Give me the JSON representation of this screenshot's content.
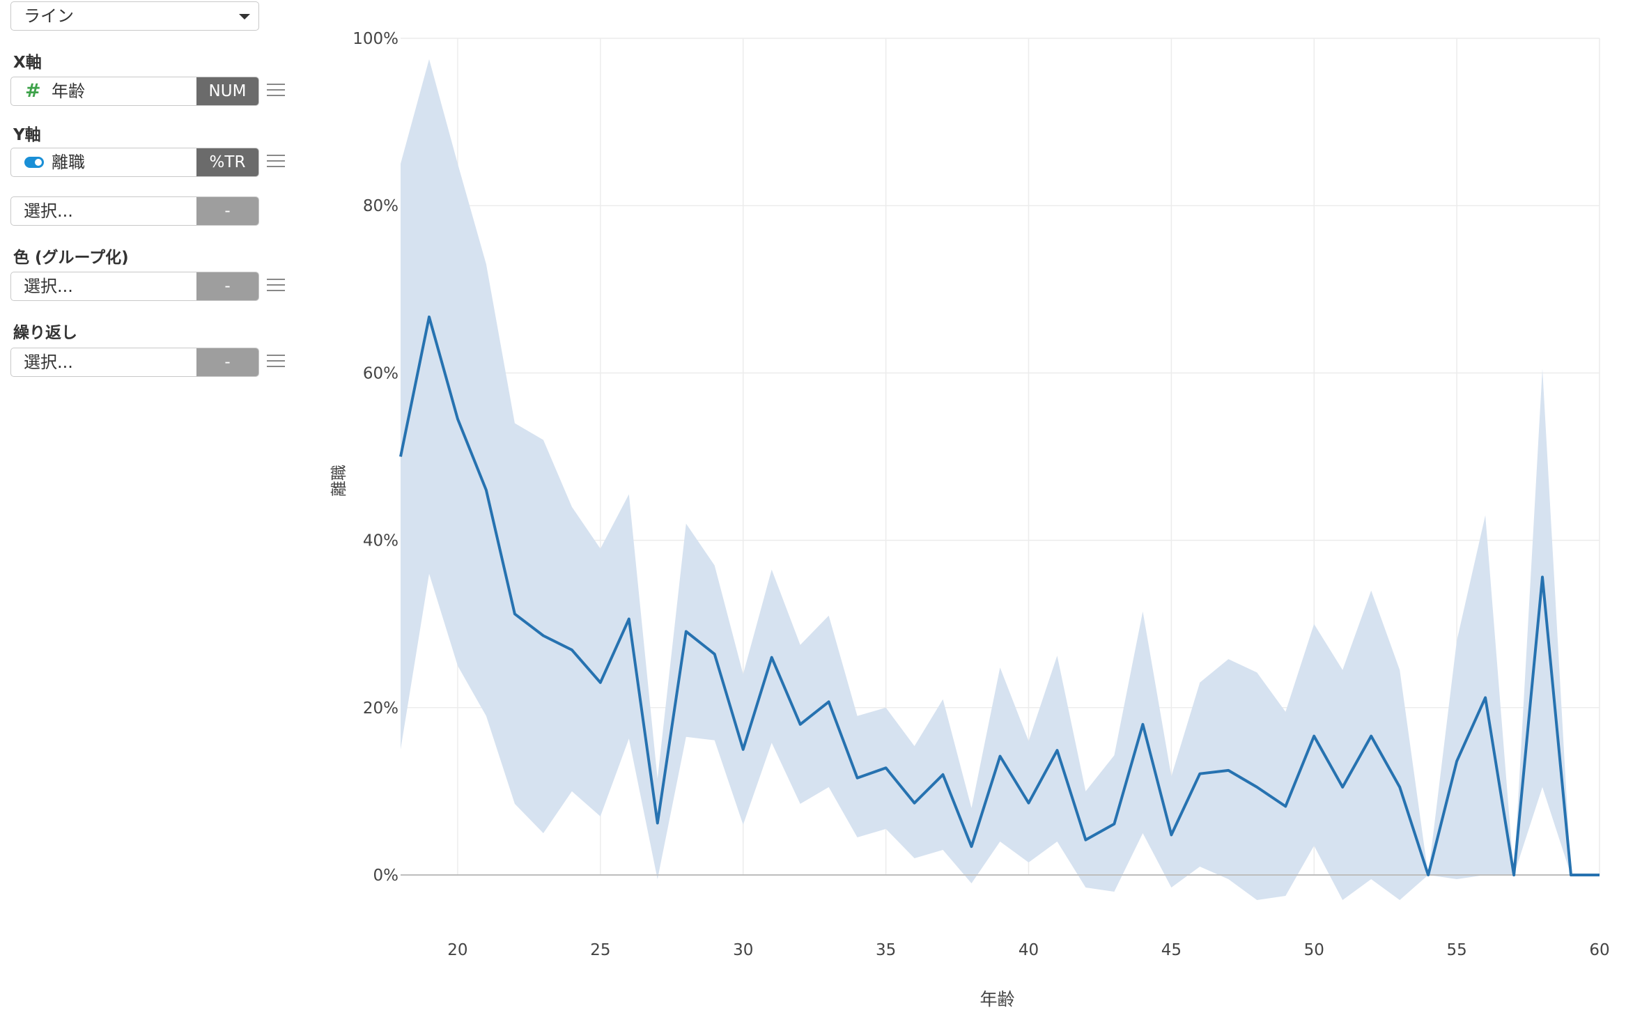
{
  "sidebar": {
    "chart_type": "ライン",
    "x_axis": {
      "label": "X軸",
      "field": "年齢",
      "field_icon": "hash-icon",
      "type_tag": "NUM"
    },
    "y_axis": {
      "label": "Y軸",
      "field": "離職",
      "field_icon": "toggle-icon",
      "type_tag": "%TR"
    },
    "extra_select": {
      "placeholder": "選択...",
      "tag": "-"
    },
    "color": {
      "label": "色 (グループ化)",
      "placeholder": "選択...",
      "tag": "-"
    },
    "repeat": {
      "label": "繰り返し",
      "placeholder": "選択...",
      "tag": "-"
    }
  },
  "chart_data": {
    "type": "line",
    "xlabel": "年齢",
    "ylabel": "離職",
    "xlim": [
      18,
      60
    ],
    "ylim": [
      0,
      100
    ],
    "x_ticks": [
      20,
      25,
      30,
      35,
      40,
      45,
      50,
      55,
      60
    ],
    "y_ticks": [
      0,
      20,
      40,
      60,
      80,
      100
    ],
    "y_tick_format": "%",
    "grid": true,
    "colors": {
      "line": "#2672b0",
      "band": "#d6e2f0",
      "grid": "#ececec",
      "axis": "#bdbdbd"
    },
    "series": [
      {
        "x": [
          18,
          19,
          20,
          21,
          22,
          23,
          24,
          25,
          26,
          27,
          28,
          29,
          30,
          31,
          32,
          33,
          34,
          35,
          36,
          37,
          38,
          39,
          40,
          41,
          42,
          43,
          44,
          45,
          46,
          47,
          48,
          49,
          50,
          51,
          52,
          53,
          54,
          55,
          56,
          57,
          58,
          59,
          60
        ],
        "y": [
          50,
          66.7,
          54.5,
          46,
          31.2,
          28.6,
          26.9,
          23,
          30.6,
          6.2,
          29.1,
          26.4,
          15,
          26,
          18,
          20.7,
          11.6,
          12.8,
          8.6,
          12,
          3.4,
          14.2,
          8.6,
          14.9,
          4.2,
          6.1,
          18,
          4.8,
          12.1,
          12.5,
          10.5,
          8.2,
          16.6,
          10.5,
          16.6,
          10.5,
          0,
          13.6,
          21.2,
          0,
          35.6,
          0,
          0
        ],
        "upper": [
          85,
          97.5,
          85,
          73,
          54,
          52,
          44,
          39,
          45.5,
          11.5,
          42,
          37,
          24,
          36.5,
          27.5,
          31,
          19,
          20,
          15.4,
          21,
          8,
          24.8,
          16,
          26.2,
          10,
          14.3,
          31.5,
          11.8,
          23,
          25.8,
          24.2,
          19.5,
          30,
          24.5,
          34,
          24.5,
          0,
          28,
          43,
          0,
          60.5,
          0,
          0
        ],
        "lower": [
          15,
          36,
          25,
          19,
          8.5,
          5,
          10,
          7,
          16.3,
          -0.5,
          16.5,
          16.1,
          6,
          15.8,
          8.5,
          10.5,
          4.5,
          5.5,
          2,
          3,
          -1,
          4,
          1.5,
          4,
          -1.5,
          -2,
          5,
          -1.5,
          1,
          -0.5,
          -3,
          -2.5,
          3.5,
          -3,
          -0.5,
          -3,
          0,
          -0.5,
          0,
          0,
          10.5,
          0,
          0
        ]
      }
    ]
  }
}
